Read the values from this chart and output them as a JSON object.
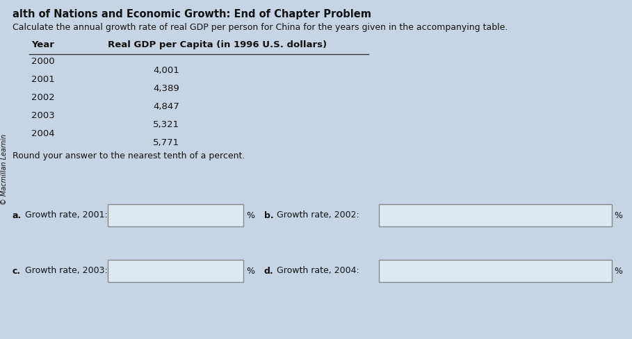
{
  "title_partial": "alth of Nations and Economic Growth: End of Chapter Problem",
  "subtitle": "Calculate the annual growth rate of real GDP per person for China for the years given in the accompanying table.",
  "col_header_year": "Year",
  "col_header_gdp": "Real GDP per Capita (in 1996 U.S. dollars)",
  "table_data": [
    [
      "2000",
      "4,001"
    ],
    [
      "2001",
      "4,389"
    ],
    [
      "2002",
      "4,847"
    ],
    [
      "2003",
      "5,321"
    ],
    [
      "2004",
      "5,771"
    ]
  ],
  "round_text": "Round your answer to the nearest tenth of a percent.",
  "questions": [
    {
      "label": "a.",
      "text": " Growth rate, 2001:"
    },
    {
      "label": "b.",
      "text": " Growth rate, 2002:"
    },
    {
      "label": "c.",
      "text": " Growth rate, 2003:"
    },
    {
      "label": "d.",
      "text": " Growth rate, 2004:"
    }
  ],
  "copyright": "© Macmillan Learnin",
  "bg_color": "#c5d5e5",
  "text_color": "#111111",
  "box_color": "#dde8f0",
  "header_line_color": "#333333",
  "title_fontsize": 10.5,
  "subtitle_fontsize": 9.0,
  "table_fontsize": 9.5,
  "question_fontsize": 9.0,
  "copyright_fontsize": 7.0
}
